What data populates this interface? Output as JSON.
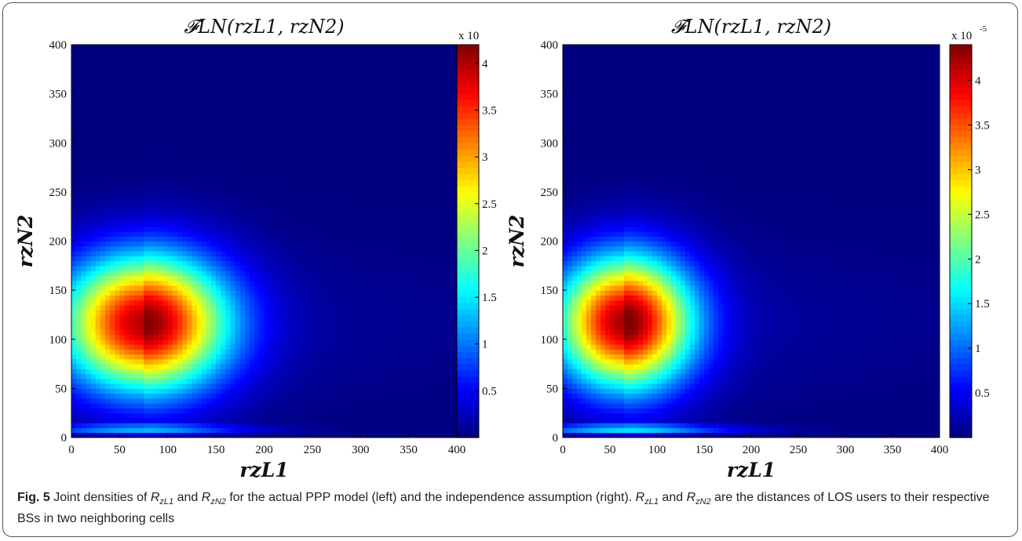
{
  "chart_data": [
    {
      "type": "heatmap",
      "title": "𝓕LN(rzL1, rzN2)",
      "xlabel": "rzL1",
      "ylabel": "rzN2",
      "xlim": [
        0,
        400
      ],
      "ylim": [
        0,
        400
      ],
      "x_ticks": [
        "0",
        "50",
        "100",
        "150",
        "200",
        "250",
        "300",
        "350",
        "400"
      ],
      "y_ticks": [
        "0",
        "50",
        "100",
        "150",
        "200",
        "250",
        "300",
        "350",
        "400"
      ],
      "colorbar": {
        "multiplier": "x 10",
        "exponent": "",
        "min": 0,
        "max": 4.2,
        "ticks": [
          "0.5",
          "1",
          "1.5",
          "2",
          "2.5",
          "3",
          "3.5",
          "4"
        ]
      },
      "peak": {
        "x": 75,
        "y": 117,
        "value": 4.1
      },
      "colormap": "jet"
    },
    {
      "type": "heatmap",
      "title": "𝓕LN(rzL1, rzN2)",
      "xlabel": "rzL1",
      "ylabel": "rzN2",
      "xlim": [
        0,
        400
      ],
      "ylim": [
        0,
        400
      ],
      "x_ticks": [
        "0",
        "50",
        "100",
        "150",
        "200",
        "250",
        "300",
        "350",
        "400"
      ],
      "y_ticks": [
        "0",
        "50",
        "100",
        "150",
        "200",
        "250",
        "300",
        "350",
        "400"
      ],
      "colorbar": {
        "multiplier": "x 10",
        "exponent": "-5",
        "min": 0,
        "max": 4.4,
        "ticks": [
          "0.5",
          "1",
          "1.5",
          "2",
          "2.5",
          "3",
          "3.5",
          "4"
        ]
      },
      "peak": {
        "x": 65,
        "y": 118,
        "value": 4.35
      },
      "colormap": "jet"
    }
  ],
  "caption": {
    "fig_label": "Fig. 5",
    "t1": " Joint densities of ",
    "v1": "R",
    "v1_sub": "zL1",
    "t2": " and ",
    "v2": "R",
    "v2_sub": "zN2",
    "t3": " for the actual PPP model (left) and the independence assumption (right). ",
    "v3": "R",
    "v3_sub": "zL1",
    "t4": " and ",
    "v4": "R",
    "v4_sub": "zN2",
    "t5": " are the distances of LOS users to their respective BSs in two neighboring cells"
  }
}
